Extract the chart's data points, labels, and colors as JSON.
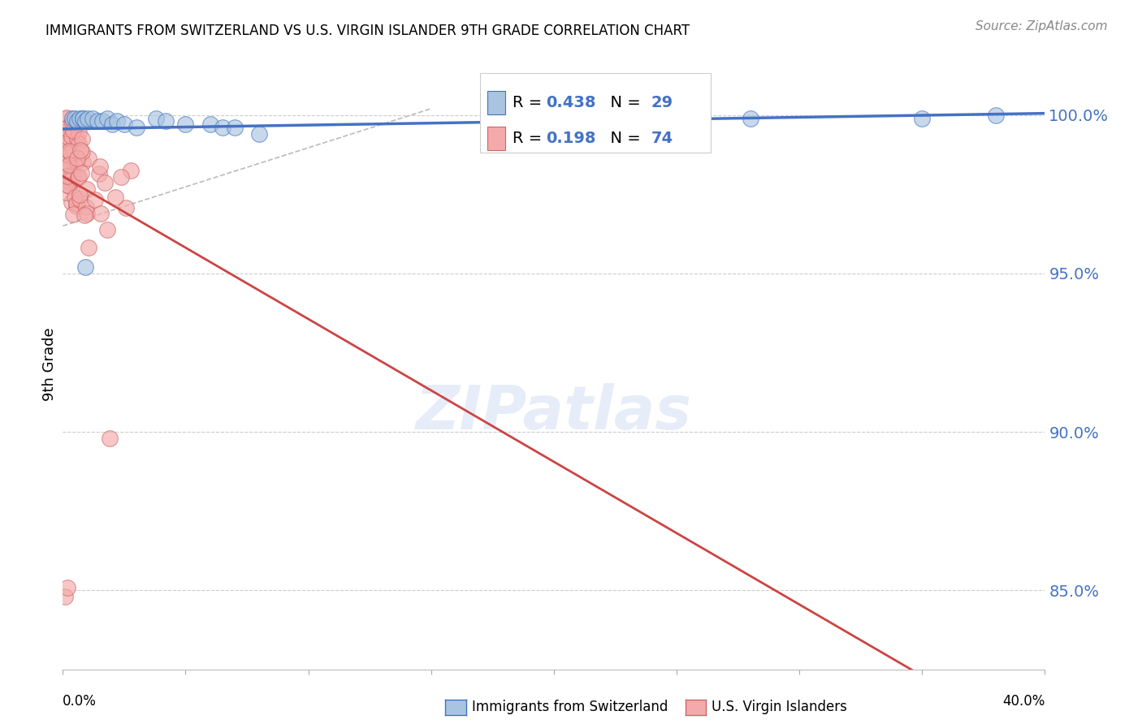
{
  "title": "IMMIGRANTS FROM SWITZERLAND VS U.S. VIRGIN ISLANDER 9TH GRADE CORRELATION CHART",
  "source": "Source: ZipAtlas.com",
  "ylabel": "9th Grade",
  "ytick_labels": [
    "100.0%",
    "95.0%",
    "90.0%",
    "85.0%"
  ],
  "ytick_vals": [
    1.0,
    0.95,
    0.9,
    0.85
  ],
  "xlim": [
    0.0,
    0.4
  ],
  "ylim": [
    0.825,
    1.018
  ],
  "r_blue": 0.438,
  "n_blue": 29,
  "r_pink": 0.198,
  "n_pink": 74,
  "blue_face": "#a8c4e0",
  "blue_edge": "#4472c4",
  "pink_face": "#f4aaaa",
  "pink_edge": "#cc6666",
  "trendline_blue": "#4472c4",
  "trendline_pink": "#cc4444",
  "trendline_dash": "#bbbbbb",
  "legend_blue": "Immigrants from Switzerland",
  "legend_pink": "U.S. Virgin Islanders",
  "grid_color": "#cccccc",
  "right_axis_color": "#4472c4",
  "legend_r_color": "#000000",
  "legend_val_color": "#4472c4"
}
